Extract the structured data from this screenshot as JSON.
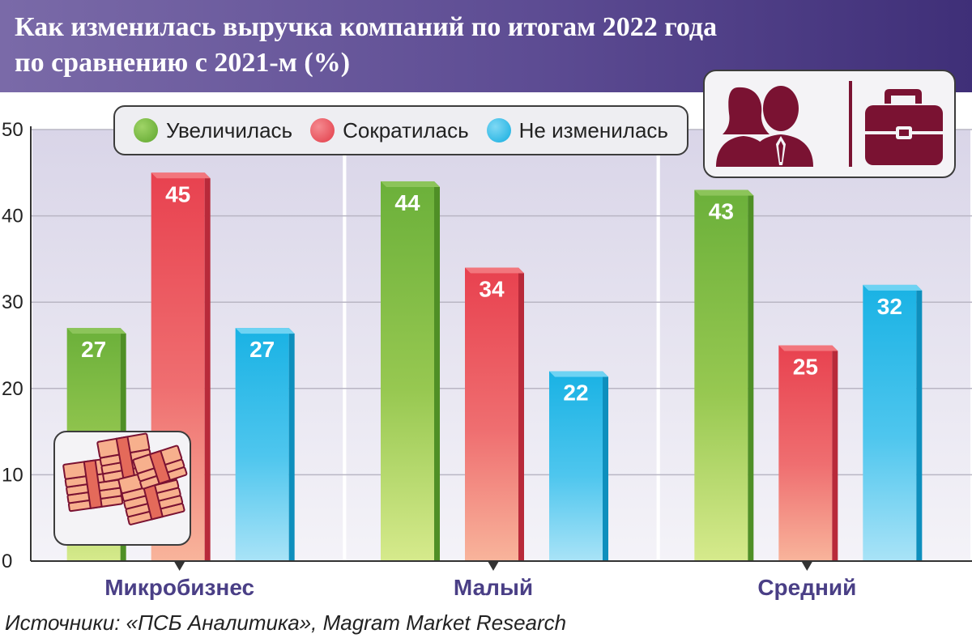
{
  "title": {
    "line1": "Как изменилась выручка компаний по итогам 2022 года",
    "line2": "по сравнению с 2021-м (%)"
  },
  "legend": {
    "items": [
      {
        "label": "Увеличилась",
        "color": "#6fb33b"
      },
      {
        "label": "Сократилась",
        "color": "#ea4b55"
      },
      {
        "label": "Не изменилась",
        "color": "#22b7e6"
      }
    ]
  },
  "source": "Источники: «ПСБ Аналитика», Magram Market Research",
  "icons": [
    "people-icon",
    "briefcase-icon",
    "money-stack-icon"
  ],
  "chart_data": {
    "type": "bar",
    "categories": [
      "Микробизнес",
      "Малый",
      "Средний"
    ],
    "series": [
      {
        "name": "Увеличилась",
        "values": [
          27,
          44,
          43
        ],
        "color": "#6fb33b"
      },
      {
        "name": "Сократилась",
        "values": [
          45,
          34,
          25
        ],
        "color": "#ea4b55"
      },
      {
        "name": "Не изменилась",
        "values": [
          27,
          22,
          32
        ],
        "color": "#22b7e6"
      }
    ],
    "y_ticks": [
      0,
      10,
      20,
      30,
      40,
      50
    ],
    "ylim": [
      0,
      50
    ],
    "grid": true,
    "data_labels": true,
    "legend_position": "top"
  }
}
